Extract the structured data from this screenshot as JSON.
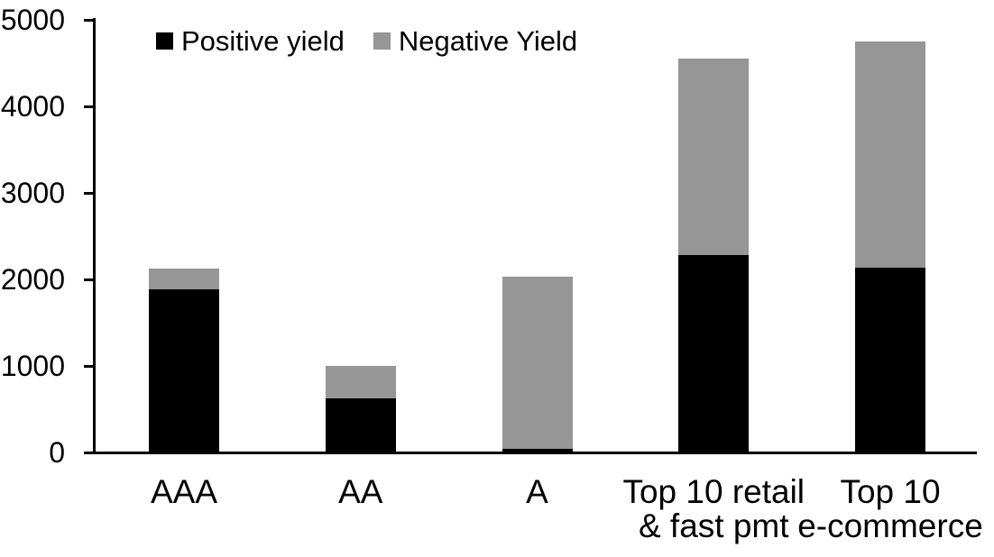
{
  "chart_data": {
    "type": "bar",
    "stacked": true,
    "title": "",
    "xlabel": "",
    "ylabel": "",
    "categories": [
      "AAA",
      "AA",
      "A",
      "Top 10 retail\n& fast pmt",
      "Top 10\ne-commerce"
    ],
    "series": [
      {
        "name": "Positive yield",
        "color": "#000000",
        "values": [
          1890,
          620,
          40,
          2280,
          2140
        ]
      },
      {
        "name": "Negative Yield",
        "color": "#969696",
        "values": [
          230,
          380,
          1990,
          2270,
          2610
        ]
      }
    ],
    "ylim": [
      0,
      5000
    ],
    "yticks": [
      0,
      1000,
      2000,
      3000,
      4000,
      5000
    ],
    "grid": false,
    "legend_position": "top",
    "colors": {
      "axis": "#000000",
      "background": "#ffffff",
      "text": "#000000"
    }
  }
}
